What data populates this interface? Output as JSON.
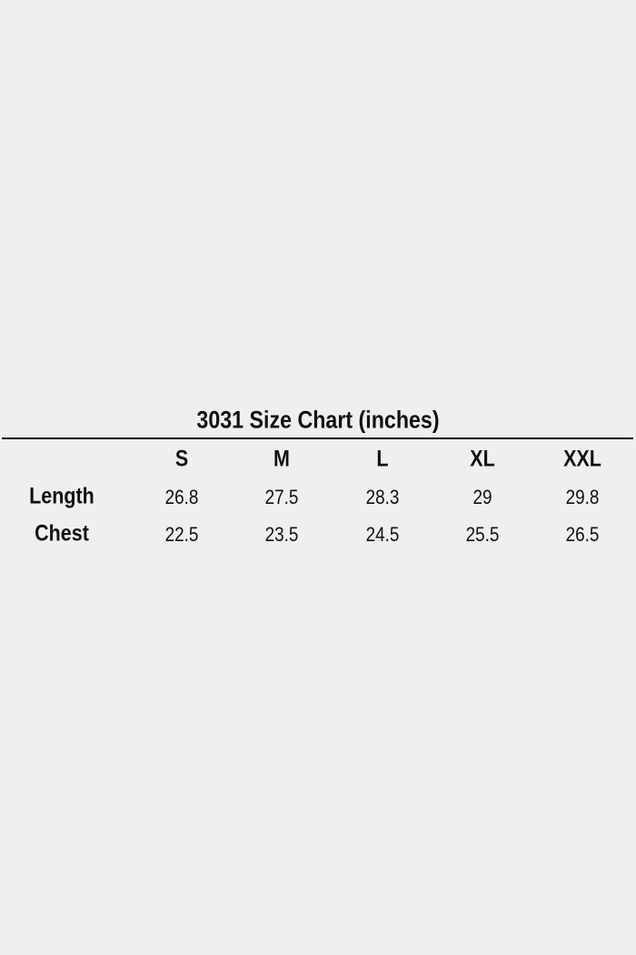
{
  "title": "3031 Size Chart (inches)",
  "columns": [
    "S",
    "M",
    "L",
    "XL",
    "XXL"
  ],
  "rows": [
    {
      "label": "Length",
      "values": [
        "26.8",
        "27.5",
        "28.3",
        "29",
        "29.8"
      ]
    },
    {
      "label": "Chest",
      "values": [
        "22.5",
        "23.5",
        "24.5",
        "25.5",
        "26.5"
      ]
    }
  ]
}
